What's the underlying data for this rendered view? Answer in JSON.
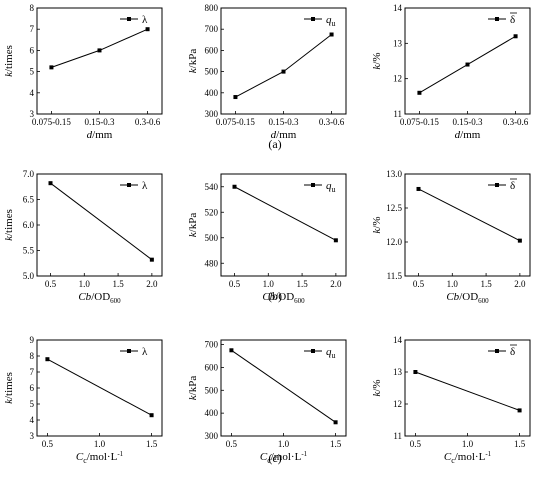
{
  "panel_labels": [
    "(a)",
    "(b)",
    "(c)"
  ],
  "chart_data": [
    {
      "type": "line",
      "row": 0,
      "col": 0,
      "x": [
        "0.075-0.15",
        "0.15-0.3",
        "0.3-0.6"
      ],
      "y": [
        5.2,
        6.0,
        7.0
      ],
      "xlim": [
        -0.3,
        2.3
      ],
      "xticks": [
        0,
        1,
        2
      ],
      "xlabels": [
        "0.075-0.15",
        "0.15-0.3",
        "0.3-0.6"
      ],
      "ylim": [
        3,
        8
      ],
      "yticks": [
        3,
        4,
        5,
        6,
        7,
        8
      ],
      "ylabels": [
        "3",
        "4",
        "5",
        "6",
        "7",
        "8"
      ],
      "ylabel": {
        "main": "k",
        "unit": "/times"
      },
      "xlabel": {
        "main": "d",
        "sub": "",
        "unit": "/mm",
        "sup": ""
      },
      "legend": {
        "sym": "λ",
        "sub": "",
        "overline": false
      }
    },
    {
      "type": "line",
      "row": 0,
      "col": 1,
      "x": [
        "0.075-0.15",
        "0.15-0.3",
        "0.3-0.6"
      ],
      "y": [
        380,
        500,
        675
      ],
      "xlim": [
        -0.3,
        2.3
      ],
      "xticks": [
        0,
        1,
        2
      ],
      "xlabels": [
        "0.075-0.15",
        "0.15-0.3",
        "0.3-0.6"
      ],
      "ylim": [
        300,
        800
      ],
      "yticks": [
        300,
        400,
        500,
        600,
        700,
        800
      ],
      "ylabels": [
        "300",
        "400",
        "500",
        "600",
        "700",
        "800"
      ],
      "ylabel": {
        "main": "k",
        "unit": "/kPa"
      },
      "xlabel": {
        "main": "d",
        "sub": "",
        "unit": "/mm",
        "sup": ""
      },
      "legend": {
        "sym": "q",
        "sub": "u",
        "overline": false
      }
    },
    {
      "type": "line",
      "row": 0,
      "col": 2,
      "x": [
        "0.075-0.15",
        "0.15-0.3",
        "0.3-0.6"
      ],
      "y": [
        11.6,
        12.4,
        13.2
      ],
      "xlim": [
        -0.3,
        2.3
      ],
      "xticks": [
        0,
        1,
        2
      ],
      "xlabels": [
        "0.075-0.15",
        "0.15-0.3",
        "0.3-0.6"
      ],
      "ylim": [
        11,
        14
      ],
      "yticks": [
        11,
        12,
        13,
        14
      ],
      "ylabels": [
        "11",
        "12",
        "13",
        "14"
      ],
      "ylabel": {
        "main": "k",
        "unit": "/%"
      },
      "xlabel": {
        "main": "d",
        "sub": "",
        "unit": "/mm",
        "sup": ""
      },
      "legend": {
        "sym": "δ",
        "sub": "",
        "overline": true
      }
    },
    {
      "type": "line",
      "row": 1,
      "col": 0,
      "x": [
        0.5,
        2.0
      ],
      "y": [
        6.82,
        5.32
      ],
      "xlim": [
        0.3,
        2.15
      ],
      "xticks": [
        0.5,
        1.0,
        1.5,
        2.0
      ],
      "xlabels": [
        "0.5",
        "1.0",
        "1.5",
        "2.0"
      ],
      "ylim": [
        5.0,
        7.0
      ],
      "yticks": [
        5.0,
        5.5,
        6.0,
        6.5,
        7.0
      ],
      "ylabels": [
        "5.0",
        "5.5",
        "6.0",
        "6.5",
        "7.0"
      ],
      "ylabel": {
        "main": "k",
        "unit": "/times"
      },
      "xlabel": {
        "main": "Cb",
        "sub": "",
        "unit": "/OD",
        "sup": "600"
      },
      "legend": {
        "sym": "λ",
        "sub": "",
        "overline": false
      }
    },
    {
      "type": "line",
      "row": 1,
      "col": 1,
      "x": [
        0.5,
        2.0
      ],
      "y": [
        540,
        498
      ],
      "xlim": [
        0.3,
        2.15
      ],
      "xticks": [
        0.5,
        1.0,
        1.5,
        2.0
      ],
      "xlabels": [
        "0.5",
        "1.0",
        "1.5",
        "2.0"
      ],
      "ylim": [
        470,
        550
      ],
      "yticks": [
        480,
        500,
        520,
        540
      ],
      "ylabels": [
        "480",
        "500",
        "520",
        "540"
      ],
      "ylabel": {
        "main": "k",
        "unit": "/kPa"
      },
      "xlabel": {
        "main": "Cb",
        "sub": "",
        "unit": "/OD",
        "sup": "600"
      },
      "legend": {
        "sym": "q",
        "sub": "u",
        "overline": false
      }
    },
    {
      "type": "line",
      "row": 1,
      "col": 2,
      "x": [
        0.5,
        2.0
      ],
      "y": [
        12.78,
        12.02
      ],
      "xlim": [
        0.3,
        2.15
      ],
      "xticks": [
        0.5,
        1.0,
        1.5,
        2.0
      ],
      "xlabels": [
        "0.5",
        "1.0",
        "1.5",
        "2.0"
      ],
      "ylim": [
        11.5,
        13.0
      ],
      "yticks": [
        11.5,
        12.0,
        12.5,
        13.0
      ],
      "ylabels": [
        "11.5",
        "12.0",
        "12.5",
        "13.0"
      ],
      "ylabel": {
        "main": "k",
        "unit": "/%"
      },
      "xlabel": {
        "main": "Cb",
        "sub": "",
        "unit": "/OD",
        "sup": "600"
      },
      "legend": {
        "sym": "δ",
        "sub": "",
        "overline": true
      }
    },
    {
      "type": "line",
      "row": 2,
      "col": 0,
      "x": [
        0.5,
        1.5
      ],
      "y": [
        7.8,
        4.3
      ],
      "xlim": [
        0.4,
        1.6
      ],
      "xticks": [
        0.5,
        1.0,
        1.5
      ],
      "xlabels": [
        "0.5",
        "1.0",
        "1.5"
      ],
      "ylim": [
        3,
        9
      ],
      "yticks": [
        3,
        4,
        5,
        6,
        7,
        8,
        9
      ],
      "ylabels": [
        "3",
        "4",
        "5",
        "6",
        "7",
        "8",
        "9"
      ],
      "ylabel": {
        "main": "k",
        "unit": "/times"
      },
      "xlabel": {
        "main": "C",
        "sub": "c",
        "unit": "/mol·L",
        "sup": "-1"
      },
      "legend": {
        "sym": "λ",
        "sub": "",
        "overline": false
      }
    },
    {
      "type": "line",
      "row": 2,
      "col": 1,
      "x": [
        0.5,
        1.5
      ],
      "y": [
        675,
        360
      ],
      "xlim": [
        0.4,
        1.6
      ],
      "xticks": [
        0.5,
        1.0,
        1.5
      ],
      "xlabels": [
        "0.5",
        "1.0",
        "1.5"
      ],
      "ylim": [
        300,
        720
      ],
      "yticks": [
        300,
        400,
        500,
        600,
        700
      ],
      "ylabels": [
        "300",
        "400",
        "500",
        "600",
        "700"
      ],
      "ylabel": {
        "main": "k",
        "unit": "/kPa"
      },
      "xlabel": {
        "main": "C",
        "sub": "c",
        "unit": "/mol·L",
        "sup": "-1"
      },
      "legend": {
        "sym": "q",
        "sub": "u",
        "overline": false
      }
    },
    {
      "type": "line",
      "row": 2,
      "col": 2,
      "x": [
        0.5,
        1.5
      ],
      "y": [
        13.0,
        11.8
      ],
      "xlim": [
        0.4,
        1.6
      ],
      "xticks": [
        0.5,
        1.0,
        1.5
      ],
      "xlabels": [
        "0.5",
        "1.0",
        "1.5"
      ],
      "ylim": [
        11,
        14
      ],
      "yticks": [
        11,
        12,
        13,
        14
      ],
      "ylabels": [
        "11",
        "12",
        "13",
        "14"
      ],
      "ylabel": {
        "main": "k",
        "unit": "/%"
      },
      "xlabel": {
        "main": "C",
        "sub": "c",
        "unit": "/mol·L",
        "sup": "-1"
      },
      "legend": {
        "sym": "δ",
        "sub": "",
        "overline": true
      }
    }
  ]
}
